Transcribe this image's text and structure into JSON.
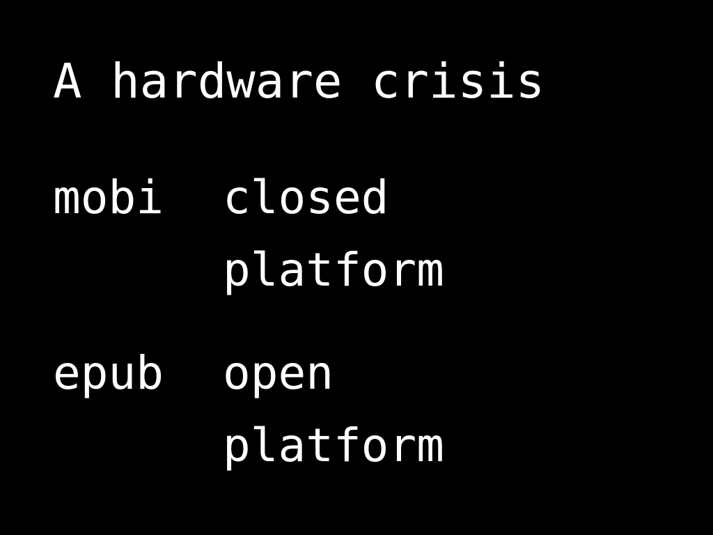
{
  "slide": {
    "title": "A hardware crisis",
    "rows": [
      {
        "term": "mobi",
        "lines": [
          "closed",
          "platform"
        ]
      },
      {
        "term": "epub",
        "lines": [
          "open",
          "platform"
        ]
      }
    ]
  },
  "colors": {
    "background": "#000000",
    "text": "#ffffff"
  }
}
